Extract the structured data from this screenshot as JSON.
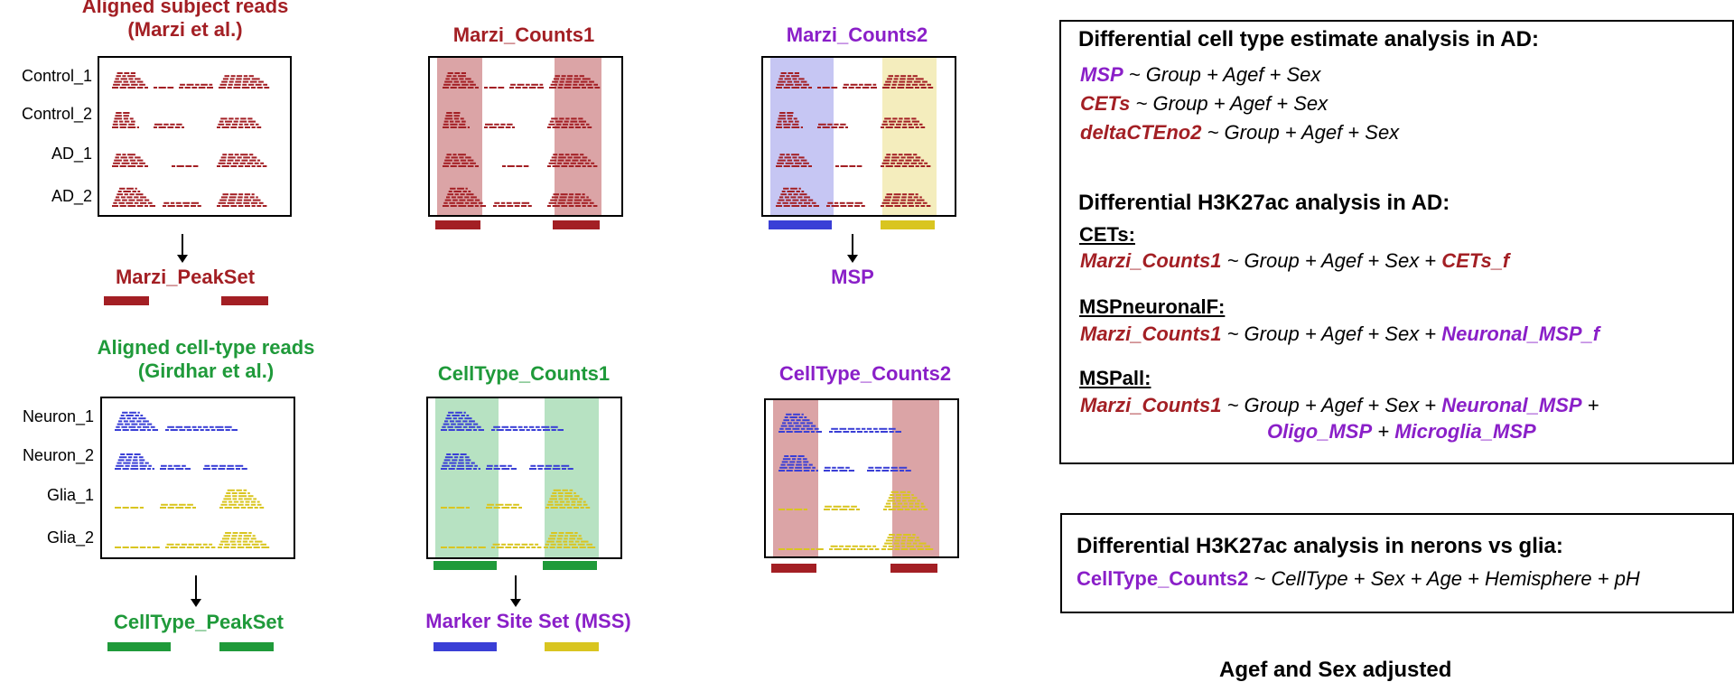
{
  "colors": {
    "red": "#a31f24",
    "purple": "#8a1fc8",
    "green": "#1f9a3a",
    "blue": "#3a3fd6",
    "yellow": "#d9c520",
    "bandRed": "#dba4a6",
    "bandBlue": "#c6c6f3",
    "bandYellow": "#f4edbd",
    "bandGreen": "#b7e2c2"
  },
  "top": {
    "aligned_title_1": "Aligned subject reads",
    "aligned_title_2": "(Marzi et al.)",
    "rows": [
      "Control_1",
      "Control_2",
      "AD_1",
      "AD_2"
    ],
    "counts1_title": "Marzi_Counts1",
    "counts2_title": "Marzi_Counts2",
    "peakset_label": "Marzi_PeakSet",
    "msp_label": "MSP"
  },
  "bottom": {
    "aligned_title_1": "Aligned cell-type reads",
    "aligned_title_2": "(Girdhar et al.)",
    "rows": [
      "Neuron_1",
      "Neuron_2",
      "Glia_1",
      "Glia_2"
    ],
    "counts1_title": "CellType_Counts1",
    "counts2_title": "CellType_Counts2",
    "peakset_label": "CellType_PeakSet",
    "mss_label": "Marker Site Set (MSS)"
  },
  "box1": {
    "header_a": "Differential cell type estimate analysis in AD:",
    "f1_var": "MSP",
    "f2_var": "CETs",
    "f3_var": "deltaCTEno2",
    "f_rhs": " ~ Group + Agef + Sex",
    "header_b": "Differential H3K27ac analysis in AD:",
    "cets_sub": "CETs:",
    "counts_var": "Marzi_Counts1",
    "rhs_base": " ~ Group + Agef + Sex + ",
    "cets_f": "CETs_f",
    "mspn_sub": "MSPneuronalF:",
    "neuronal_msp_f": "Neuronal_MSP_f",
    "mspall_sub": "MSPall:",
    "neuronal_msp": "Neuronal_MSP",
    "plus": " + ",
    "trailing_plus": " +",
    "oligo_msp": "Oligo_MSP",
    "microglia_msp": "Microglia_MSP"
  },
  "box2": {
    "header": "Differential H3K27ac analysis in nerons vs glia:",
    "var": "CellType_Counts2",
    "rhs": " ~ CellType + Sex + Age + Hemisphere + pH"
  },
  "footer_partial": "Agef and Sex adjusted"
}
